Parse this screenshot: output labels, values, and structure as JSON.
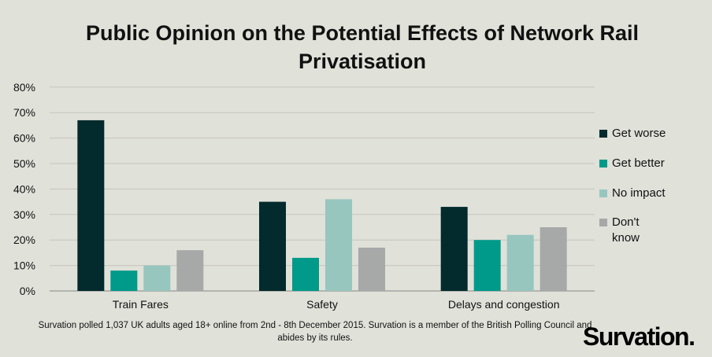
{
  "chart_data": {
    "type": "bar",
    "title": "Public Opinion on the Potential Effects of Network Rail Privatisation",
    "categories": [
      "Train Fares",
      "Safety",
      "Delays and congestion"
    ],
    "series": [
      {
        "name": "Get worse",
        "color": "#032a2c",
        "values": [
          67,
          35,
          33
        ]
      },
      {
        "name": "Get better",
        "color": "#009a8a",
        "values": [
          8,
          13,
          20
        ]
      },
      {
        "name": "No impact",
        "color": "#97c6bf",
        "values": [
          10,
          36,
          22
        ]
      },
      {
        "name": "Don't know",
        "color": "#a7a8a8",
        "values": [
          16,
          17,
          25
        ]
      }
    ],
    "yticks": [
      "0%",
      "10%",
      "20%",
      "30%",
      "40%",
      "50%",
      "60%",
      "70%",
      "80%"
    ],
    "ylim": [
      0,
      80
    ],
    "grid": true,
    "legend": "right"
  },
  "footnote": "Survation polled 1,037 UK adults aged 18+ online from 2nd - 8th December 2015. Survation is a member of the British Polling Council and abides by its rules.",
  "logo": "Survation."
}
